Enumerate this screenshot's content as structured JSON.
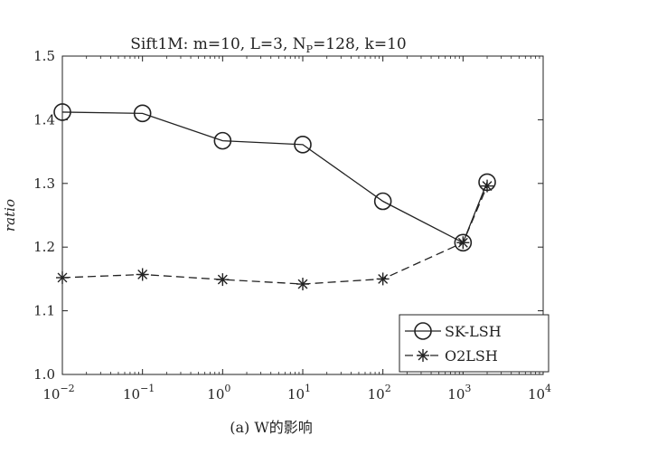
{
  "chart_data": {
    "type": "line",
    "title": "Sift1M: m=10, L=3, N_P=128, k=10",
    "ylabel": "ratio",
    "caption": "(a) W的影响",
    "xscale": "log",
    "xlim": [
      0.01,
      10000
    ],
    "ylim": [
      1.0,
      1.5
    ],
    "x_ticks": [
      {
        "value": 0.01,
        "base": "10",
        "exp": "−2"
      },
      {
        "value": 0.1,
        "base": "10",
        "exp": "−1"
      },
      {
        "value": 1,
        "base": "10",
        "exp": "0"
      },
      {
        "value": 10,
        "base": "10",
        "exp": "1"
      },
      {
        "value": 100,
        "base": "10",
        "exp": "2"
      },
      {
        "value": 1000,
        "base": "10",
        "exp": "3"
      },
      {
        "value": 10000,
        "base": "10",
        "exp": "4"
      }
    ],
    "y_ticks": [
      "1.0",
      "1.1",
      "1.2",
      "1.3",
      "1.4",
      "1.5"
    ],
    "grid": false,
    "legend_position": "bottom-right",
    "series": [
      {
        "name": "SK-LSH",
        "marker": "circle",
        "linestyle": "solid",
        "x": [
          0.01,
          0.1,
          1,
          10,
          100,
          1000,
          2000
        ],
        "y": [
          1.412,
          1.41,
          1.367,
          1.361,
          1.272,
          1.207,
          1.302
        ]
      },
      {
        "name": "O2LSH",
        "marker": "star",
        "linestyle": "dashed",
        "x": [
          0.01,
          0.1,
          1,
          10,
          100,
          1000,
          2000
        ],
        "y": [
          1.152,
          1.157,
          1.149,
          1.142,
          1.15,
          1.207,
          1.296
        ]
      }
    ]
  }
}
